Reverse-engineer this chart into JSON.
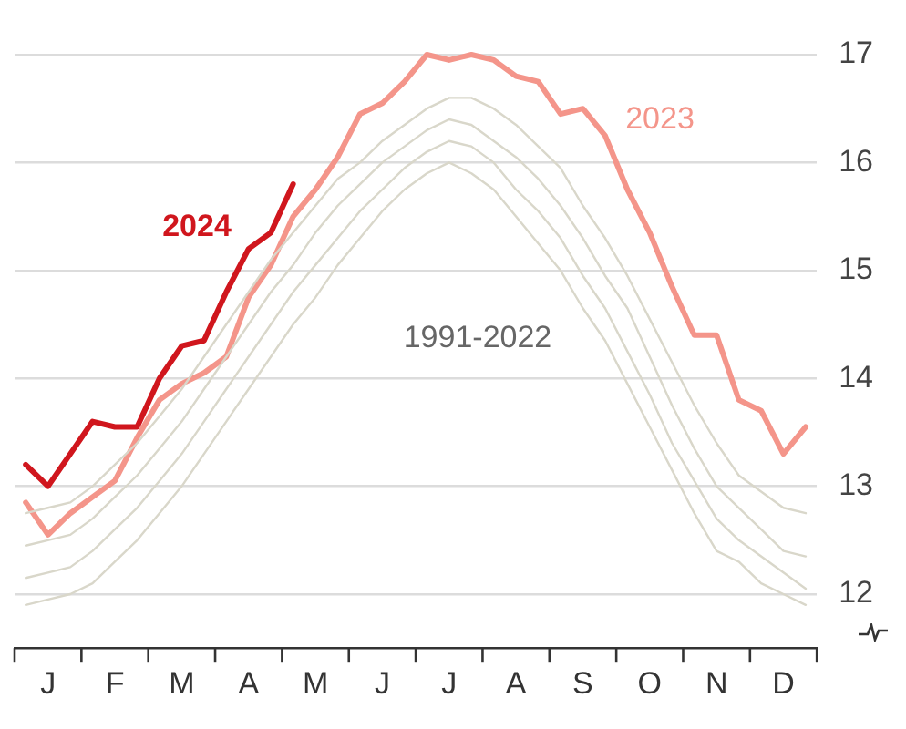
{
  "chart_data": {
    "type": "line",
    "ylim": [
      11.5,
      17
    ],
    "categories": [
      null,
      "J",
      null,
      null,
      "F",
      null,
      null,
      "M",
      null,
      null,
      "A",
      null,
      null,
      "M",
      null,
      null,
      "J",
      null,
      null,
      "J",
      null,
      null,
      "A",
      null,
      null,
      "S",
      null,
      null,
      "O",
      null,
      null,
      "N",
      null,
      null,
      "D",
      null
    ],
    "yticks": [
      12,
      13,
      14,
      15,
      16,
      17
    ],
    "grid": "y",
    "legend": false,
    "marker": "none",
    "line_style": "solid",
    "annotations": [
      "1991-2022"
    ],
    "series": [
      {
        "color": "#d9d7ca",
        "values": [
          12.75,
          12.8,
          12.85,
          13.0,
          13.2,
          13.4,
          13.65,
          13.9,
          14.2,
          14.5,
          14.8,
          15.1,
          15.35,
          15.6,
          15.85,
          16.0,
          16.2,
          16.35,
          16.5,
          16.6,
          16.6,
          16.5,
          16.35,
          16.15,
          15.95,
          15.6,
          15.3,
          14.95,
          14.55,
          14.15,
          13.75,
          13.4,
          13.1,
          12.95,
          12.8,
          12.75
        ]
      },
      {
        "color": "#d9d7ca",
        "values": [
          12.45,
          12.5,
          12.55,
          12.7,
          12.9,
          13.1,
          13.35,
          13.6,
          13.9,
          14.2,
          14.5,
          14.8,
          15.05,
          15.35,
          15.6,
          15.8,
          16.0,
          16.15,
          16.3,
          16.4,
          16.35,
          16.2,
          16.05,
          15.85,
          15.6,
          15.3,
          14.95,
          14.65,
          14.2,
          13.75,
          13.35,
          13.0,
          12.8,
          12.6,
          12.4,
          12.35
        ]
      },
      {
        "color": "#d9d7ca",
        "values": [
          12.15,
          12.2,
          12.25,
          12.4,
          12.6,
          12.8,
          13.05,
          13.3,
          13.6,
          13.9,
          14.2,
          14.5,
          14.8,
          15.05,
          15.3,
          15.55,
          15.75,
          15.95,
          16.1,
          16.2,
          16.15,
          16.0,
          15.75,
          15.55,
          15.3,
          14.95,
          14.65,
          14.25,
          13.85,
          13.4,
          13.05,
          12.7,
          12.5,
          12.35,
          12.2,
          12.05
        ]
      },
      {
        "color": "#d9d7ca",
        "values": [
          11.9,
          11.95,
          12.0,
          12.1,
          12.3,
          12.5,
          12.75,
          13.0,
          13.3,
          13.6,
          13.9,
          14.2,
          14.5,
          14.75,
          15.05,
          15.3,
          15.55,
          15.75,
          15.9,
          16.0,
          15.9,
          15.75,
          15.5,
          15.25,
          15.0,
          14.65,
          14.35,
          13.95,
          13.55,
          13.15,
          12.75,
          12.4,
          12.3,
          12.1,
          12.0,
          11.9
        ]
      },
      {
        "name": "2023",
        "color": "#f4958a",
        "values": [
          12.85,
          12.55,
          12.75,
          12.9,
          13.05,
          13.45,
          13.8,
          13.95,
          14.05,
          14.2,
          14.75,
          15.05,
          15.5,
          15.75,
          16.05,
          16.45,
          16.55,
          16.75,
          17.0,
          16.95,
          17.0,
          16.95,
          16.8,
          16.75,
          16.45,
          16.5,
          16.25,
          15.75,
          15.35,
          14.85,
          14.4,
          14.4,
          13.8,
          13.7,
          13.3,
          13.55
        ]
      },
      {
        "name": "2024",
        "color": "#d0161d",
        "values": [
          13.2,
          13.0,
          13.3,
          13.6,
          13.55,
          13.55,
          14.0,
          14.3,
          14.35,
          14.8,
          15.2,
          15.35,
          15.8,
          null,
          null,
          null,
          null,
          null,
          null,
          null,
          null,
          null,
          null,
          null,
          null,
          null,
          null,
          null,
          null,
          null,
          null,
          null,
          null,
          null,
          null,
          null
        ]
      }
    ]
  }
}
